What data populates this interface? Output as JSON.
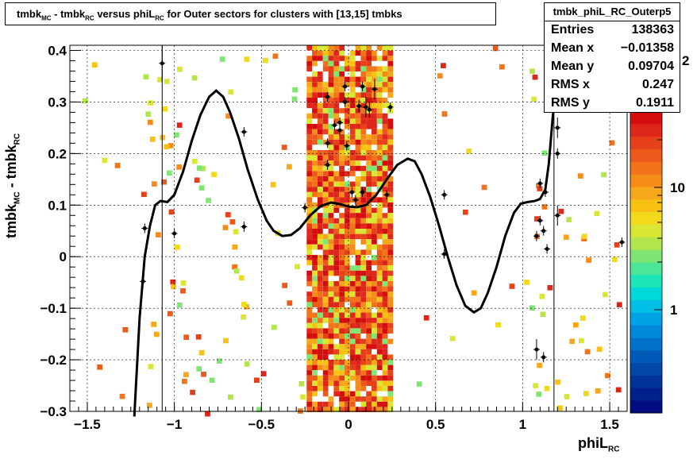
{
  "chart_data": {
    "type": "heatmap",
    "title": {
      "parts": [
        "tmbk",
        "MC",
        " - tmbk",
        "RC",
        " versus phiL",
        "RC",
        " for Outer sectors for clusters with [13,15] tmbks"
      ]
    },
    "xlabel": {
      "main": "phiL",
      "sub": "RC"
    },
    "ylabel": {
      "p1": "tmbk",
      "s1": "MC",
      "p2": " - tmbk",
      "s2": "RC"
    },
    "xlim": [
      -1.6,
      1.6
    ],
    "ylim": [
      -0.3,
      0.41
    ],
    "xticks": [
      -1.5,
      -1,
      -0.5,
      0,
      0.5,
      1,
      1.5
    ],
    "xtick_labels": [
      "−1.5",
      "−1",
      "−0.5",
      "0",
      "0.5",
      "1",
      "1.5"
    ],
    "yticks": [
      -0.3,
      -0.2,
      -0.1,
      0,
      0.1,
      0.2,
      0.3,
      0.4
    ],
    "ytick_labels": [
      "−0.3",
      "−0.2",
      "−0.1",
      "0",
      "0.1",
      "0.2",
      "0.3",
      "0.4"
    ],
    "grid": true,
    "colorbar": {
      "scale": "log",
      "tick_labels": [
        "1",
        "10"
      ],
      "top_label": "2",
      "colors": [
        "#000c80",
        "#00208c",
        "#003399",
        "#0047a8",
        "#005bb8",
        "#0072c9",
        "#0089d9",
        "#00a3e6",
        "#00bfe6",
        "#00d9d9",
        "#1ae6b8",
        "#4de699",
        "#80e673",
        "#b3e64d",
        "#d9e633",
        "#f2d91a",
        "#f7c214",
        "#f7a81a",
        "#f58c1a",
        "#f2731a",
        "#ed591a",
        "#e6401a",
        "#de261a",
        "#d40d0d"
      ]
    },
    "fit_curve": [
      [
        -1.23,
        -0.31
      ],
      [
        -1.2,
        -0.12
      ],
      [
        -1.17,
        -0.0
      ],
      [
        -1.14,
        0.06
      ],
      [
        -1.11,
        0.1
      ],
      [
        -1.08,
        0.108
      ],
      [
        -1.04,
        0.106
      ],
      [
        -1.0,
        0.12
      ],
      [
        -0.95,
        0.165
      ],
      [
        -0.9,
        0.225
      ],
      [
        -0.85,
        0.275
      ],
      [
        -0.8,
        0.31
      ],
      [
        -0.76,
        0.322
      ],
      [
        -0.72,
        0.31
      ],
      [
        -0.68,
        0.28
      ],
      [
        -0.63,
        0.23
      ],
      [
        -0.58,
        0.17
      ],
      [
        -0.52,
        0.11
      ],
      [
        -0.47,
        0.07
      ],
      [
        -0.43,
        0.05
      ],
      [
        -0.38,
        0.04
      ],
      [
        -0.33,
        0.042
      ],
      [
        -0.28,
        0.055
      ],
      [
        -0.22,
        0.08
      ],
      [
        -0.16,
        0.098
      ],
      [
        -0.1,
        0.105
      ],
      [
        -0.05,
        0.102
      ],
      [
        0.0,
        0.097
      ],
      [
        0.05,
        0.096
      ],
      [
        0.1,
        0.1
      ],
      [
        0.16,
        0.12
      ],
      [
        0.22,
        0.15
      ],
      [
        0.28,
        0.178
      ],
      [
        0.34,
        0.19
      ],
      [
        0.38,
        0.185
      ],
      [
        0.42,
        0.16
      ],
      [
        0.47,
        0.115
      ],
      [
        0.52,
        0.06
      ],
      [
        0.57,
        0.0
      ],
      [
        0.62,
        -0.055
      ],
      [
        0.67,
        -0.095
      ],
      [
        0.72,
        -0.108
      ],
      [
        0.76,
        -0.1
      ],
      [
        0.8,
        -0.07
      ],
      [
        0.85,
        -0.02
      ],
      [
        0.9,
        0.04
      ],
      [
        0.95,
        0.085
      ],
      [
        0.99,
        0.103
      ],
      [
        1.03,
        0.106
      ],
      [
        1.07,
        0.108
      ],
      [
        1.1,
        0.112
      ],
      [
        1.13,
        0.13
      ],
      [
        1.15,
        0.18
      ],
      [
        1.17,
        0.26
      ],
      [
        1.19,
        0.34
      ],
      [
        1.205,
        0.41
      ]
    ],
    "profile_points": [
      [
        -1.17,
        0.055,
        0.006
      ],
      [
        -1.18,
        -0.048,
        0.012
      ],
      [
        -1.07,
        0.375,
        0.035
      ],
      [
        -1.0,
        0.045,
        0.005
      ],
      [
        -0.6,
        0.058,
        0.01
      ],
      [
        -0.6,
        0.242,
        0.005
      ],
      [
        -0.25,
        0.095,
        0.004
      ],
      [
        -0.12,
        0.22,
        0.005
      ],
      [
        -0.12,
        0.178,
        0.01
      ],
      [
        -0.12,
        0.31,
        0.008
      ],
      [
        -0.08,
        0.255,
        0.005
      ],
      [
        -0.05,
        0.26,
        0.01
      ],
      [
        -0.05,
        0.245,
        0.005
      ],
      [
        -0.02,
        0.33,
        0.008
      ],
      [
        -0.02,
        0.3,
        0.007
      ],
      [
        -0.01,
        0.215,
        0.006
      ],
      [
        0.02,
        0.125,
        0.01
      ],
      [
        0.04,
        0.11,
        0.004
      ],
      [
        0.06,
        0.292,
        0.012
      ],
      [
        0.08,
        0.33,
        0.006
      ],
      [
        0.1,
        0.29,
        0.02
      ],
      [
        0.12,
        0.285,
        0.015
      ],
      [
        0.15,
        0.325,
        0.02
      ],
      [
        0.08,
        0.125,
        0.005
      ],
      [
        0.22,
        0.12,
        0.005
      ],
      [
        0.24,
        0.29,
        0.005
      ],
      [
        0.55,
        0.12,
        0.006
      ],
      [
        0.55,
        0.005,
        0.006
      ],
      [
        1.08,
        0.04,
        0.01
      ],
      [
        1.1,
        0.07,
        0.006
      ],
      [
        1.12,
        0.05,
        0.008
      ],
      [
        1.14,
        0.015,
        0.005
      ],
      [
        1.08,
        -0.18,
        0.02
      ],
      [
        1.12,
        -0.195,
        0.01
      ],
      [
        1.2,
        0.25,
        0.02
      ],
      [
        1.2,
        0.08,
        0.02
      ],
      [
        1.2,
        0.2,
        0.01
      ],
      [
        1.13,
        0.125,
        0.005
      ],
      [
        1.1,
        0.142,
        0.006
      ],
      [
        1.57,
        0.028,
        0.004
      ]
    ]
  },
  "stats": {
    "name": "tmbk_phiL_RC_Outerp5",
    "rows": [
      {
        "key": "Entries",
        "value": "138363"
      },
      {
        "key": "Mean x",
        "value": "−0.01358"
      },
      {
        "key": "Mean y",
        "value": "0.09704"
      },
      {
        "key": "RMS x",
        "value": "0.247"
      },
      {
        "key": "RMS y",
        "value": "0.1911"
      }
    ]
  }
}
